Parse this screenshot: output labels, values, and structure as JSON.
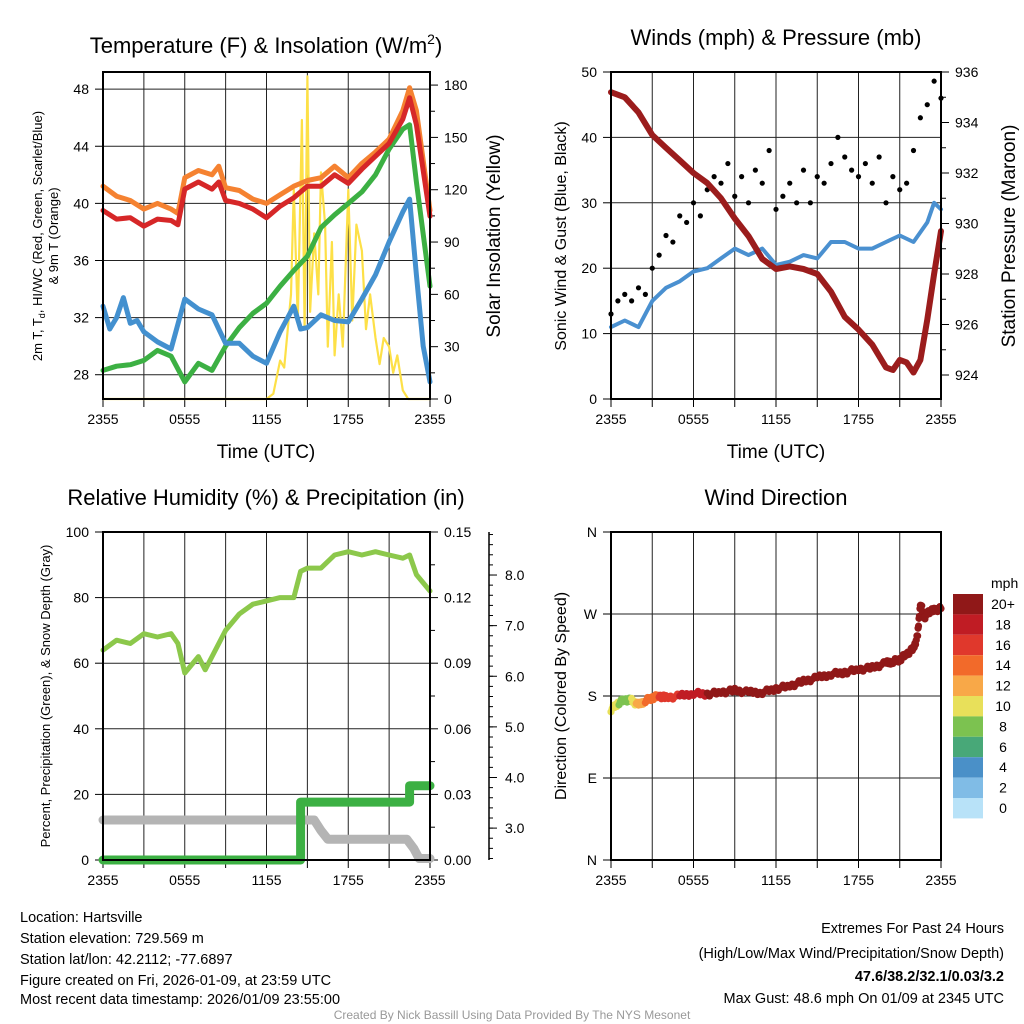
{
  "footer": {
    "location": "Location: Hartsville",
    "elevation": "Station elevation: 729.569 m",
    "latlon": "Station lat/lon: 42.2112; -77.6897",
    "created": "Figure created on Fri, 2026-01-09, at 23:59 UTC",
    "recent": "Most recent data timestamp: 2026/01/09 23:55:00",
    "extremes_title": "Extremes For Past 24 Hours",
    "extremes_fields": "(High/Low/Max Wind/Precipitation/Snow Depth)",
    "extremes_values": "47.6/38.2/32.1/0.03/3.2",
    "max_gust": "Max Gust: 48.6 mph On 01/09 at 2345 UTC",
    "credit": "Created By Nick Bassill Using Data Provided By The NYS Mesonet",
    "extremes_color": "#d62728"
  },
  "chart_data": [
    {
      "id": "temp",
      "type": "line",
      "title": "Temperature (F) & Insolation (W/m",
      "title_sup": "2",
      "title_end": ")",
      "xlabel": "Time (UTC)",
      "ylabel_a": "2m T, T",
      "ylabel_sub": "d",
      "ylabel_b": ", HI/WC (Red, Green, Scarlet/Blue)",
      "ylabel2": "& 9m T (Orange)",
      "y2label": "Solar Insolation (Yellow)",
      "xticks": [
        "2355",
        "0555",
        "1155",
        "1755",
        "2355"
      ],
      "xlim_hours": [
        0,
        24
      ],
      "ylim": [
        26.3,
        49.2
      ],
      "yticks": [
        "28",
        "32",
        "36",
        "40",
        "44",
        "48"
      ],
      "y2lim": [
        0,
        187.5
      ],
      "y2ticks": [
        "0",
        "30",
        "60",
        "90",
        "120",
        "150",
        "180"
      ],
      "series": [
        {
          "name": "9m T",
          "color": "#f58231",
          "axis": "left",
          "x": [
            0,
            1,
            2,
            3,
            4,
            5,
            5.5,
            6,
            7,
            8,
            8.5,
            9,
            10,
            11,
            12,
            13,
            14,
            15,
            16,
            17,
            18,
            19,
            20,
            21,
            22,
            22.5,
            23,
            24
          ],
          "y": [
            41.2,
            40.5,
            40.2,
            39.6,
            40,
            39.6,
            39.3,
            41.8,
            42.3,
            42,
            42.6,
            41.1,
            40.9,
            40.3,
            40,
            40.6,
            41.2,
            41.6,
            41.8,
            42.6,
            41.8,
            42.8,
            43.6,
            44.5,
            46.5,
            48.1,
            46.5,
            39.5
          ]
        },
        {
          "name": "2m T",
          "color": "#d62728",
          "axis": "left",
          "x": [
            0,
            1,
            2,
            3,
            4,
            5,
            5.5,
            6,
            7,
            8,
            8.5,
            9,
            10,
            11,
            12,
            13,
            14,
            15,
            16,
            17,
            18,
            19,
            20,
            21,
            22,
            22.5,
            23,
            24
          ],
          "y": [
            39.5,
            38.9,
            39,
            38.4,
            38.9,
            38.8,
            38.5,
            41,
            41.5,
            41,
            41.5,
            40.2,
            40,
            39.6,
            39,
            39.8,
            40.4,
            41.2,
            41.2,
            42,
            41.4,
            42.4,
            43.3,
            44.2,
            45.9,
            47.4,
            45.5,
            39.1
          ]
        },
        {
          "name": "Dewpoint",
          "color": "#3cb043",
          "axis": "left",
          "x": [
            0,
            1,
            2,
            3,
            4,
            5,
            6,
            7,
            8,
            9,
            10,
            11,
            12,
            13,
            14,
            15,
            16,
            17,
            18,
            19,
            20,
            21,
            22,
            22.5,
            23,
            24
          ],
          "y": [
            28.3,
            28.6,
            28.7,
            29,
            29.7,
            29.3,
            27.5,
            28.8,
            28.3,
            30,
            31.3,
            32.3,
            33,
            34.2,
            35.3,
            36.3,
            38.3,
            39.2,
            40,
            40.8,
            42,
            43.8,
            45.2,
            45.5,
            41.5,
            34.2
          ]
        },
        {
          "name": "HI/WC",
          "color": "#4390cf",
          "axis": "left",
          "x": [
            0,
            0.5,
            1,
            1.5,
            2,
            2.5,
            3,
            4,
            5,
            6,
            7,
            8,
            9,
            10,
            11,
            12,
            13,
            14,
            14.5,
            15,
            16,
            17,
            18,
            19,
            20,
            21,
            22,
            22.5,
            23,
            23.5,
            24
          ],
          "y": [
            32.8,
            31.2,
            32,
            33.4,
            31.6,
            31.8,
            31,
            30.3,
            29.8,
            33.3,
            32.6,
            32.2,
            30.2,
            30.2,
            29.3,
            28.8,
            31,
            32.8,
            31.2,
            31.3,
            32.2,
            31.8,
            31.7,
            33.3,
            35,
            37.3,
            39.4,
            40.3,
            35,
            30,
            27.5
          ]
        },
        {
          "name": "Solar Insolation",
          "color": "#fde047",
          "axis": "right",
          "x": [
            0,
            12,
            12.5,
            13,
            13.3,
            13.8,
            14,
            14.3,
            14.6,
            14.8,
            15,
            15.2,
            15.5,
            15.8,
            16,
            16.3,
            16.5,
            16.8,
            17,
            17.3,
            17.6,
            18,
            18.3,
            18.6,
            19,
            19.3,
            19.6,
            20,
            20.3,
            20.6,
            21,
            21.3,
            21.6,
            22,
            22.4,
            24
          ],
          "y": [
            0,
            0,
            3,
            22,
            18,
            60,
            120,
            45,
            160,
            40,
            185,
            50,
            95,
            60,
            130,
            100,
            30,
            90,
            25,
            60,
            30,
            120,
            45,
            100,
            85,
            40,
            60,
            35,
            20,
            35,
            30,
            15,
            25,
            5,
            0,
            0
          ]
        }
      ]
    },
    {
      "id": "wind",
      "type": "line",
      "title": "Winds (mph) & Pressure (mb)",
      "xlabel": "Time (UTC)",
      "ylabel": "Sonic Wind & Gust (Blue, Black)",
      "y2label": "Station Pressure (Maroon)",
      "xticks": [
        "2355",
        "0555",
        "1155",
        "1755",
        "2355"
      ],
      "xlim_hours": [
        0,
        24
      ],
      "ylim": [
        0,
        50
      ],
      "yticks": [
        "0",
        "10",
        "20",
        "30",
        "40",
        "50"
      ],
      "y2lim": [
        923.05,
        936
      ],
      "y2ticks": [
        "924",
        "926",
        "928",
        "930",
        "932",
        "934",
        "936"
      ],
      "series": [
        {
          "name": "Sonic Wind",
          "color": "#4a90d0",
          "axis": "left",
          "x": [
            0,
            1,
            2,
            3,
            4,
            5,
            6,
            7,
            8,
            9,
            10,
            11,
            12,
            13,
            14,
            15,
            16,
            17,
            18,
            19,
            20,
            21,
            22,
            23,
            23.5,
            24
          ],
          "y": [
            11,
            12,
            11,
            15,
            17,
            18,
            19.5,
            20,
            21.5,
            23,
            22,
            23,
            20.5,
            21,
            22,
            21.5,
            24,
            24,
            23,
            23,
            24,
            25,
            24,
            27,
            30,
            29
          ]
        },
        {
          "name": "Station Pressure",
          "color": "#9b1c1c",
          "axis": "right",
          "x": [
            0,
            1,
            2,
            3,
            4,
            5,
            6,
            7,
            8,
            9,
            10,
            11,
            12,
            13,
            14,
            15,
            16,
            17,
            18,
            19,
            20,
            20.5,
            21,
            21.5,
            22,
            22.5,
            23,
            23.5,
            24
          ],
          "y": [
            935.2,
            935,
            934.4,
            933.5,
            933,
            932.5,
            932,
            931.6,
            931,
            930.2,
            929.5,
            928.6,
            928.2,
            928.3,
            928.2,
            928,
            927.3,
            926.3,
            925.8,
            925.2,
            924.3,
            924.2,
            924.6,
            924.5,
            924.1,
            924.6,
            926.2,
            928,
            929.7
          ]
        },
        {
          "name": "Gust",
          "color": "#000000",
          "axis": "left",
          "type": "scatter",
          "x": [
            0,
            0.5,
            1,
            1.5,
            2,
            2.5,
            3,
            3.5,
            4,
            4.5,
            5,
            5.5,
            6,
            6.5,
            7,
            7.5,
            8,
            8.5,
            9,
            9.5,
            10,
            10.5,
            11,
            11.5,
            12,
            12.5,
            13,
            13.5,
            14,
            14.5,
            15,
            15.5,
            16,
            16.5,
            17,
            17.5,
            18,
            18.5,
            19,
            19.5,
            20,
            20.5,
            21,
            21.5,
            22,
            22.5,
            23,
            23.5,
            24
          ],
          "y": [
            13,
            15,
            16,
            15,
            17,
            16,
            20,
            22,
            25,
            24,
            28,
            27,
            30,
            28,
            32,
            34,
            33,
            36,
            31,
            34,
            30,
            35,
            33,
            38,
            29,
            31,
            33,
            30,
            35,
            30,
            34,
            33,
            36,
            40,
            37,
            35,
            34,
            36,
            33,
            37,
            30,
            34,
            32,
            33,
            38,
            43,
            45,
            48.6,
            46
          ]
        }
      ]
    },
    {
      "id": "rh",
      "type": "line",
      "title": "Relative Humidity (%) & Precipitation (in)",
      "ylabel": "Percent, Precipitation (Green), & Snow Depth (Gray)",
      "xticks": [
        "2355",
        "0555",
        "1155",
        "1755",
        "2355"
      ],
      "xlim_hours": [
        0,
        24
      ],
      "ylim": [
        0,
        100
      ],
      "yticks": [
        "0",
        "20",
        "40",
        "60",
        "80",
        "100"
      ],
      "y2lim": [
        0,
        0.15
      ],
      "y2ticks": [
        "0.00",
        "0.03",
        "0.06",
        "0.09",
        "0.12",
        "0.15"
      ],
      "y3lim": [
        2.37,
        8.85
      ],
      "y3ticks": [
        "3.0",
        "4.0",
        "5.0",
        "6.0",
        "7.0",
        "8.0"
      ],
      "series": [
        {
          "name": "Relative Humidity",
          "color": "#8cc84b",
          "axis": "left",
          "x": [
            0,
            1,
            2,
            3,
            4,
            5,
            5.5,
            6,
            7,
            7.5,
            8,
            9,
            10,
            11,
            12,
            13,
            14,
            14.5,
            15,
            16,
            17,
            18,
            19,
            20,
            21,
            22,
            22.5,
            23,
            24
          ],
          "y": [
            64,
            67,
            66,
            69,
            68,
            69,
            66,
            57,
            62,
            58,
            62,
            70,
            75,
            78,
            79,
            80,
            80,
            88,
            89,
            89,
            93,
            94,
            93,
            94,
            93,
            92,
            93,
            87,
            82
          ]
        },
        {
          "name": "Snow Depth",
          "color": "#b4b4b4",
          "axis": "snow",
          "x": [
            0,
            15.5,
            16,
            16.5,
            22.3,
            22.8,
            23.2,
            24
          ],
          "y": [
            3.16,
            3.16,
            2.95,
            2.78,
            2.78,
            2.6,
            2.4,
            2.4
          ]
        },
        {
          "name": "Precipitation",
          "color": "#3cb043",
          "axis": "right",
          "x": [
            0,
            14.5,
            14.5,
            14.6,
            22.5,
            22.5,
            24
          ],
          "y": [
            0,
            0,
            0.0265,
            0.0265,
            0.0265,
            0.034,
            0.034
          ]
        }
      ]
    },
    {
      "id": "dir",
      "type": "scatter",
      "title": "Wind Direction",
      "ylabel": "Direction (Colored By Speed)",
      "xticks": [
        "2355",
        "0555",
        "1155",
        "1755",
        "2355"
      ],
      "xlim_hours": [
        0,
        24
      ],
      "ylim": [
        0,
        360
      ],
      "yticks": [
        "N",
        "E",
        "S",
        "W",
        "N"
      ],
      "colorbar": {
        "title": "mph",
        "labels": [
          "0",
          "2",
          "4",
          "6",
          "8",
          "10",
          "12",
          "14",
          "16",
          "18",
          "20+"
        ],
        "colors": [
          "#b8e2f8",
          "#80bce6",
          "#4a90c8",
          "#48a878",
          "#7cc250",
          "#e8e05a",
          "#f8a848",
          "#f26a2a",
          "#e0382c",
          "#c01c24",
          "#901818"
        ]
      },
      "x": [
        0,
        0.5,
        1,
        1.5,
        2,
        2.5,
        3,
        3.5,
        4,
        5,
        6,
        7,
        8,
        9,
        10,
        11,
        12,
        13,
        14,
        15,
        16,
        17,
        18,
        19,
        20,
        20.5,
        21,
        21.5,
        22,
        22.3,
        22.5,
        22.8,
        23,
        23.5,
        24
      ],
      "direction": [
        165,
        172,
        176,
        175,
        170,
        175,
        178,
        180,
        178,
        180,
        183,
        182,
        184,
        186,
        184,
        184,
        188,
        191,
        196,
        200,
        204,
        206,
        209,
        211,
        216,
        218,
        220,
        226,
        232,
        246,
        282,
        266,
        272,
        274,
        276
      ],
      "speed": [
        11,
        10,
        9,
        10,
        13,
        14,
        15,
        16,
        17,
        18,
        19,
        20,
        21,
        22,
        22,
        23,
        20,
        21,
        22,
        22,
        24,
        24,
        23,
        23,
        24,
        25,
        25,
        24,
        25,
        26,
        27,
        27,
        27,
        30,
        29
      ]
    }
  ]
}
